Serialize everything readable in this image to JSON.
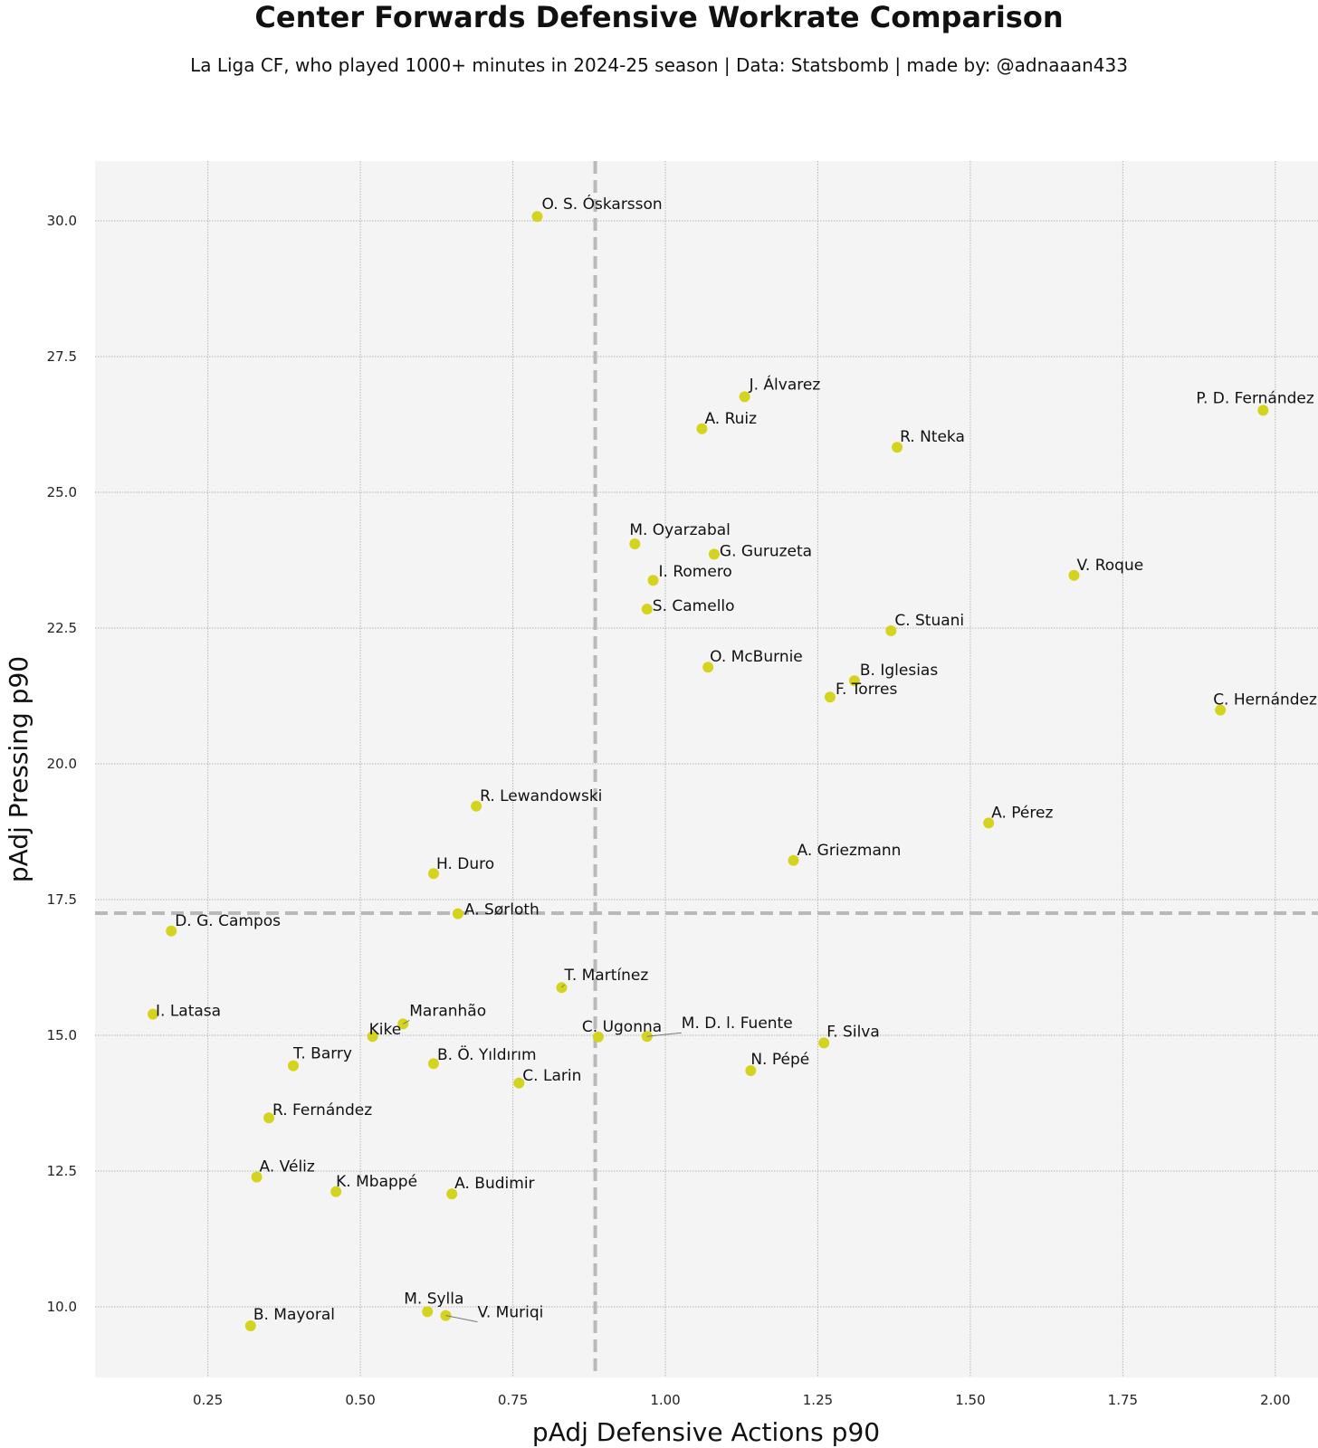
{
  "chart_data": {
    "type": "scatter",
    "title": "Center Forwards Defensive Workrate Comparison",
    "subtitle": "La Liga CF, who played 1000+ minutes in 2024-25 season  |  Data: Statsbomb  |  made by: @adnaaan433",
    "xlabel": "pAdj Defensive Actions p90",
    "ylabel": "pAdj Pressing p90",
    "xlim": [
      0.065,
      2.07
    ],
    "ylim": [
      8.7,
      31.1
    ],
    "x_ticks": [
      "0.25",
      "0.50",
      "0.75",
      "1.00",
      "1.25",
      "1.50",
      "1.75",
      "2.00"
    ],
    "y_ticks": [
      "10.0",
      "12.5",
      "15.0",
      "17.5",
      "20.0",
      "22.5",
      "25.0",
      "27.5",
      "30.0"
    ],
    "grid": true,
    "reference_lines": {
      "x": 0.885,
      "y": 17.25
    },
    "point_color": "#d4d41e",
    "points": [
      {
        "label": "O. S. Óskarsson",
        "x": 0.79,
        "y": 30.08
      },
      {
        "label": "J. Álvarez",
        "x": 1.13,
        "y": 26.76
      },
      {
        "label": "P. D. Fernández",
        "x": 1.98,
        "y": 26.51
      },
      {
        "label": "A. Ruiz",
        "x": 1.06,
        "y": 26.17
      },
      {
        "label": "R. Nteka",
        "x": 1.38,
        "y": 25.83
      },
      {
        "label": "M. Oyarzabal",
        "x": 0.95,
        "y": 24.05
      },
      {
        "label": "G. Guruzeta",
        "x": 1.08,
        "y": 23.86
      },
      {
        "label": "V. Roque",
        "x": 1.67,
        "y": 23.47
      },
      {
        "label": "I. Romero",
        "x": 0.98,
        "y": 23.38
      },
      {
        "label": "S. Camello",
        "x": 0.97,
        "y": 22.85
      },
      {
        "label": "C. Stuani",
        "x": 1.37,
        "y": 22.45
      },
      {
        "label": "O. McBurnie",
        "x": 1.07,
        "y": 21.78
      },
      {
        "label": "B. Iglesias",
        "x": 1.31,
        "y": 21.53
      },
      {
        "label": "F. Torres",
        "x": 1.27,
        "y": 21.23
      },
      {
        "label": "C. Hernández",
        "x": 1.91,
        "y": 20.99
      },
      {
        "label": "R. Lewandowski",
        "x": 0.69,
        "y": 19.22
      },
      {
        "label": "A. Pérez",
        "x": 1.53,
        "y": 18.91
      },
      {
        "label": "A. Griezmann",
        "x": 1.21,
        "y": 18.22
      },
      {
        "label": "H. Duro",
        "x": 0.62,
        "y": 17.98
      },
      {
        "label": "A. Sørloth",
        "x": 0.66,
        "y": 17.24
      },
      {
        "label": "D. G. Campos",
        "x": 0.19,
        "y": 16.92
      },
      {
        "label": "T. Martínez",
        "x": 0.83,
        "y": 15.88
      },
      {
        "label": "I. Latasa",
        "x": 0.16,
        "y": 15.39
      },
      {
        "label": "Maranhão",
        "x": 0.57,
        "y": 15.21
      },
      {
        "label": "Kike",
        "x": 0.52,
        "y": 14.98
      },
      {
        "label": "C. Ugonna",
        "x": 0.89,
        "y": 14.97
      },
      {
        "label": "M. D. l. Fuente",
        "x": 0.97,
        "y": 14.98
      },
      {
        "label": "F. Silva",
        "x": 1.26,
        "y": 14.86
      },
      {
        "label": "T. Barry",
        "x": 0.39,
        "y": 14.44
      },
      {
        "label": "B. Ö. Yıldırım",
        "x": 0.62,
        "y": 14.48
      },
      {
        "label": "N. Pépé",
        "x": 1.14,
        "y": 14.35
      },
      {
        "label": "C. Larin",
        "x": 0.76,
        "y": 14.12
      },
      {
        "label": "R. Fernández",
        "x": 0.35,
        "y": 13.48
      },
      {
        "label": "A. Véliz",
        "x": 0.33,
        "y": 12.39
      },
      {
        "label": "K. Mbappé",
        "x": 0.46,
        "y": 12.12
      },
      {
        "label": "A. Budimir",
        "x": 0.65,
        "y": 12.08
      },
      {
        "label": "M. Sylla",
        "x": 0.61,
        "y": 9.91
      },
      {
        "label": "V. Muriqi",
        "x": 0.64,
        "y": 9.84
      },
      {
        "label": "B. Mayoral",
        "x": 0.32,
        "y": 9.65
      }
    ]
  }
}
